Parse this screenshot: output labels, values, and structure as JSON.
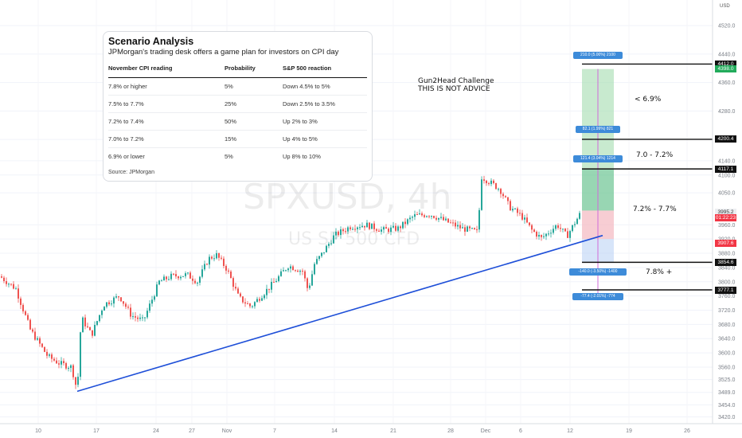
{
  "watermark": {
    "symbol": "SPXUSD, 4h",
    "name": "US SP 500 CFD"
  },
  "currency_label": "USD",
  "scenario_card": {
    "title": "Scenario Analysis",
    "subtitle": "JPMorgan's trading desk offers a game plan for investors on CPI day",
    "headers": [
      "November CPI reading",
      "Probability",
      "S&P 500 reaction"
    ],
    "rows": [
      [
        "7.8% or higher",
        "5%",
        "Down 4.5% to 5%"
      ],
      [
        "7.5% to 7.7%",
        "25%",
        "Down 2.5% to 3.5%"
      ],
      [
        "7.2% to 7.4%",
        "50%",
        "Up 2% to 3%"
      ],
      [
        "7.0% to 7.2%",
        "15%",
        "Up 4% to 5%"
      ],
      [
        "6.9% or lower",
        "5%",
        "Up 8% to 10%"
      ]
    ],
    "source": "Source: JPMorgan"
  },
  "annotation": {
    "line1": "Gun2Head Challenge",
    "line2": "THIS IS NOT ADVICE"
  },
  "levels": [
    {
      "label": "< 6.9%"
    },
    {
      "label": "7.0 - 7.2%"
    },
    {
      "label": "7.2% - 7.7%"
    },
    {
      "label": "7.8%  +"
    }
  ],
  "price_tags": [
    {
      "text": "4412.0",
      "value": 4412.0,
      "bg": "#111111"
    },
    {
      "text": "4398.0",
      "value": 4398.0,
      "bg": "#22ab5b"
    },
    {
      "text": "4200.4",
      "value": 4200.4,
      "bg": "#111111"
    },
    {
      "text": "4117.1",
      "value": 4117.1,
      "bg": "#111111"
    },
    {
      "text": "3995.2",
      "value": 3995.2,
      "bg": "#eceef1",
      "fg": "#333333"
    },
    {
      "text": "01:22:23",
      "value": 3980.0,
      "bg": "#f23645"
    },
    {
      "text": "3907.6",
      "value": 3907.6,
      "bg": "#f23645"
    },
    {
      "text": "3854.6",
      "value": 3854.6,
      "bg": "#111111"
    },
    {
      "text": "3777.1",
      "value": 3777.1,
      "bg": "#111111"
    }
  ],
  "position_labels": [
    {
      "text": "210.0 (5.00%) 2100",
      "value": 4436
    },
    {
      "text": "82.1 (1.99%) 821",
      "value": 4228
    },
    {
      "text": "121.4 (3.04%) 1214",
      "value": 4145
    },
    {
      "text": "-140.0 (-3.50%) -1400",
      "value": 3827
    },
    {
      "text": "-77.4 (-2.01%) -774",
      "value": 3757
    }
  ],
  "colors": {
    "up": "#26a69a",
    "down": "#ef5350",
    "trendline": "#1e4fd8",
    "profit_zone": "#9bd8a8",
    "loss_zone": "#f3b8c0",
    "label_blue": "#3d8bd9"
  },
  "chart_data": {
    "type": "candlestick",
    "timeframe": "4h",
    "y_axis": {
      "range": [
        3401,
        4592
      ],
      "ticks": [
        "4520.0",
        "4440.0",
        "4360.0",
        "4280.0",
        "4200.0",
        "4140.0",
        "4100.0",
        "4050.0",
        "3960.0",
        "3920.0",
        "3880.0",
        "3840.0",
        "3800.0",
        "3760.0",
        "3720.0",
        "3680.0",
        "3640.0",
        "3600.0",
        "3560.0",
        "3525.0",
        "3489.0",
        "3454.0",
        "3420.0"
      ],
      "tick_values": [
        4520,
        4440,
        4360,
        4280,
        4200,
        4140,
        4100,
        4050,
        3960,
        3920,
        3880,
        3840,
        3800,
        3760,
        3720,
        3680,
        3640,
        3600,
        3560,
        3525,
        3489,
        3454,
        3420
      ]
    },
    "x_axis": {
      "ticks": [
        "10",
        "17",
        "24",
        "27",
        "Nov",
        "7",
        "14",
        "21",
        "28",
        "Dec",
        "6",
        "12",
        "19",
        "26"
      ]
    },
    "close_path": [
      [
        0,
        3815
      ],
      [
        20,
        3780
      ],
      [
        38,
        3665
      ],
      [
        60,
        3590
      ],
      [
        75,
        3570
      ],
      [
        90,
        3560
      ],
      [
        97,
        3492
      ],
      [
        102,
        3700
      ],
      [
        115,
        3650
      ],
      [
        130,
        3735
      ],
      [
        150,
        3760
      ],
      [
        165,
        3705
      ],
      [
        180,
        3690
      ],
      [
        190,
        3745
      ],
      [
        200,
        3800
      ],
      [
        215,
        3815
      ],
      [
        235,
        3820
      ],
      [
        248,
        3800
      ],
      [
        262,
        3865
      ],
      [
        272,
        3875
      ],
      [
        285,
        3835
      ],
      [
        300,
        3755
      ],
      [
        315,
        3730
      ],
      [
        330,
        3765
      ],
      [
        345,
        3800
      ],
      [
        362,
        3845
      ],
      [
        380,
        3830
      ],
      [
        387,
        3775
      ],
      [
        395,
        3850
      ],
      [
        405,
        3880
      ],
      [
        420,
        3930
      ],
      [
        440,
        3955
      ],
      [
        460,
        3960
      ],
      [
        480,
        3945
      ],
      [
        500,
        3950
      ],
      [
        520,
        3985
      ],
      [
        540,
        3990
      ],
      [
        560,
        3970
      ],
      [
        580,
        3950
      ],
      [
        600,
        3940
      ],
      [
        605,
        4095
      ],
      [
        615,
        4080
      ],
      [
        628,
        4060
      ],
      [
        640,
        4010
      ],
      [
        655,
        3985
      ],
      [
        668,
        3945
      ],
      [
        680,
        3922
      ],
      [
        700,
        3960
      ],
      [
        712,
        3928
      ],
      [
        730,
        3996
      ]
    ],
    "trendline": {
      "start": [
        97,
        3492
      ],
      "end": [
        757,
        3930
      ]
    },
    "horizontal_levels": [
      4412.0,
      4200.4,
      4117.1,
      3854.6,
      3777.1
    ],
    "position": {
      "entry": 4000,
      "take_profits": [
        4412.0,
        4200.4,
        4117.1
      ],
      "stops": [
        3854.6,
        3777.1
      ],
      "zone_top": 4398,
      "zone_bottom": 3854.6
    }
  }
}
